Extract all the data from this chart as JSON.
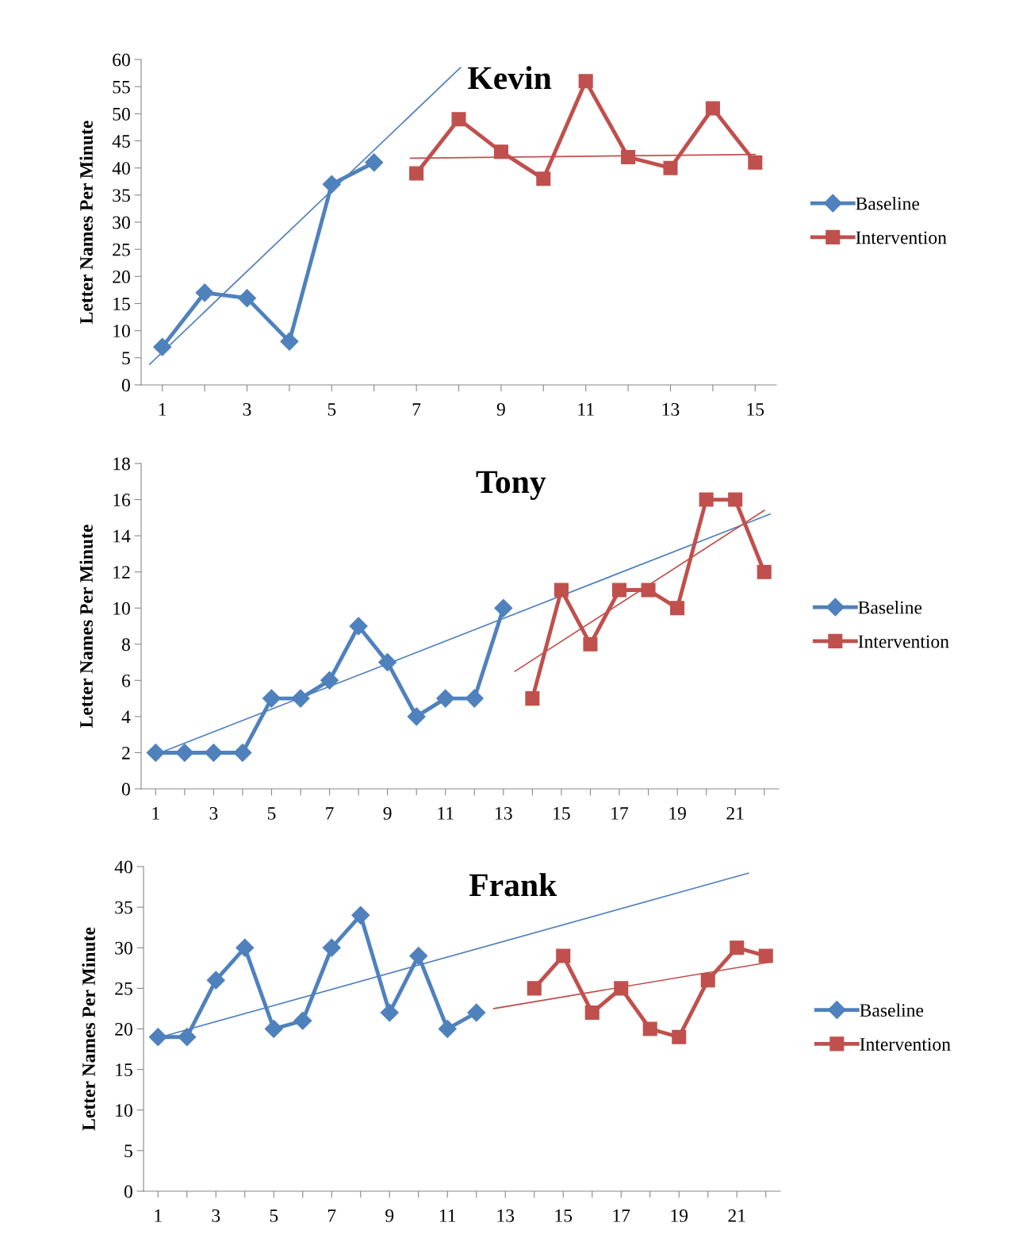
{
  "chart_data": [
    {
      "type": "line",
      "title": "Kevin",
      "ylabel": "Letter Names Per Minute",
      "xlim": [
        0.5,
        15.5
      ],
      "xticks": [
        1,
        {
          "value": 2,
          "label": null
        },
        3,
        {
          "value": 4,
          "label": null
        },
        5,
        {
          "value": 6,
          "label": null
        },
        7,
        {
          "value": 8,
          "label": null
        },
        9,
        {
          "value": 10,
          "label": null
        },
        11,
        {
          "value": 12,
          "label": null
        },
        13,
        {
          "value": 14,
          "label": null
        },
        15
      ],
      "ylim": [
        0,
        60
      ],
      "yticks": [
        0,
        5,
        10,
        15,
        20,
        25,
        30,
        35,
        40,
        45,
        50,
        55,
        60
      ],
      "grid": false,
      "legend": "right",
      "series": [
        {
          "name": "Baseline",
          "color": "#4f81bd",
          "marker": "diamond",
          "x": [
            1,
            2,
            3,
            4,
            5,
            6
          ],
          "values": [
            7,
            17,
            16,
            8,
            37,
            41
          ]
        },
        {
          "name": "Intervention",
          "color": "#c0504d",
          "marker": "square",
          "x": [
            7,
            8,
            9,
            10,
            11,
            12,
            13,
            14,
            15
          ],
          "values": [
            39,
            49,
            43,
            38,
            56,
            42,
            40,
            51,
            41
          ]
        },
        {
          "color": "#4f81bd",
          "marker": "none",
          "x": [
            0.7,
            8.04
          ],
          "values": [
            3.8,
            58.5
          ]
        },
        {
          "color": "#c0504d",
          "marker": "none",
          "x": [
            6.86,
            15
          ],
          "values": [
            41.8,
            42.5
          ]
        }
      ]
    },
    {
      "type": "line",
      "title": "Tony",
      "ylabel": "Letter Names Per Minute",
      "xlim": [
        0.5,
        22.5
      ],
      "xticks": [
        1,
        {
          "value": 2,
          "label": null
        },
        3,
        {
          "value": 4,
          "label": null
        },
        5,
        {
          "value": 6,
          "label": null
        },
        7,
        {
          "value": 8,
          "label": null
        },
        9,
        {
          "value": 10,
          "label": null
        },
        11,
        {
          "value": 12,
          "label": null
        },
        13,
        {
          "value": 14,
          "label": null
        },
        15,
        {
          "value": 16,
          "label": null
        },
        17,
        {
          "value": 18,
          "label": null
        },
        19,
        {
          "value": 20,
          "label": null
        },
        21,
        {
          "value": 22,
          "label": null
        }
      ],
      "ylim": [
        0,
        18
      ],
      "yticks": [
        0,
        2,
        4,
        6,
        8,
        10,
        12,
        14,
        16,
        18
      ],
      "grid": false,
      "legend": "right",
      "series": [
        {
          "name": "Baseline",
          "color": "#4f81bd",
          "marker": "diamond",
          "x": [
            1,
            2,
            3,
            4,
            5,
            6,
            7,
            8,
            9,
            10,
            11,
            12,
            13
          ],
          "values": [
            2,
            2,
            2,
            2,
            5,
            5,
            6,
            9,
            7,
            4,
            5,
            5,
            10
          ]
        },
        {
          "name": "Intervention",
          "color": "#c0504d",
          "marker": "square",
          "x": [
            14,
            15,
            16,
            17,
            18,
            19,
            20,
            21,
            22
          ],
          "values": [
            5,
            11,
            8,
            11,
            11,
            10,
            16,
            16,
            12
          ]
        },
        {
          "color": "#4f81bd",
          "marker": "none",
          "x": [
            1,
            22.2
          ],
          "values": [
            1.9,
            15.2
          ]
        },
        {
          "color": "#c0504d",
          "marker": "none",
          "x": [
            13.4,
            22
          ],
          "values": [
            6.5,
            15.4
          ]
        }
      ]
    },
    {
      "type": "line",
      "title": "Frank",
      "ylabel": "Letter Names Per Minute",
      "xlim": [
        0.5,
        22.5
      ],
      "xticks": [
        1,
        {
          "value": 2,
          "label": null
        },
        3,
        {
          "value": 4,
          "label": null
        },
        5,
        {
          "value": 6,
          "label": null
        },
        7,
        {
          "value": 8,
          "label": null
        },
        9,
        {
          "value": 10,
          "label": null
        },
        11,
        {
          "value": 12,
          "label": null
        },
        13,
        {
          "value": 14,
          "label": null
        },
        15,
        {
          "value": 16,
          "label": null
        },
        17,
        {
          "value": 18,
          "label": null
        },
        19,
        {
          "value": 20,
          "label": null
        },
        21,
        {
          "value": 22,
          "label": null
        }
      ],
      "ylim": [
        0,
        40
      ],
      "yticks": [
        0,
        5,
        10,
        15,
        20,
        25,
        30,
        35,
        40
      ],
      "grid": false,
      "legend": "right",
      "series": [
        {
          "name": "Baseline",
          "color": "#4f81bd",
          "marker": "diamond",
          "x": [
            1,
            2,
            3,
            4,
            5,
            6,
            7,
            8,
            9,
            10,
            11,
            12
          ],
          "values": [
            19,
            19,
            26,
            30,
            20,
            21,
            30,
            34,
            22,
            29,
            20,
            22
          ]
        },
        {
          "name": "Intervention",
          "color": "#c0504d",
          "marker": "square",
          "x": [
            14,
            15,
            16,
            17,
            18,
            19,
            20,
            21,
            22
          ],
          "values": [
            25,
            29,
            22,
            25,
            20,
            19,
            26,
            30,
            29
          ]
        },
        {
          "color": "#4f81bd",
          "marker": "none",
          "x": [
            1,
            21.4
          ],
          "values": [
            18.9,
            39.2
          ]
        },
        {
          "color": "#c0504d",
          "marker": "none",
          "x": [
            12.6,
            22.1
          ],
          "values": [
            22.5,
            28.2
          ]
        }
      ]
    }
  ]
}
